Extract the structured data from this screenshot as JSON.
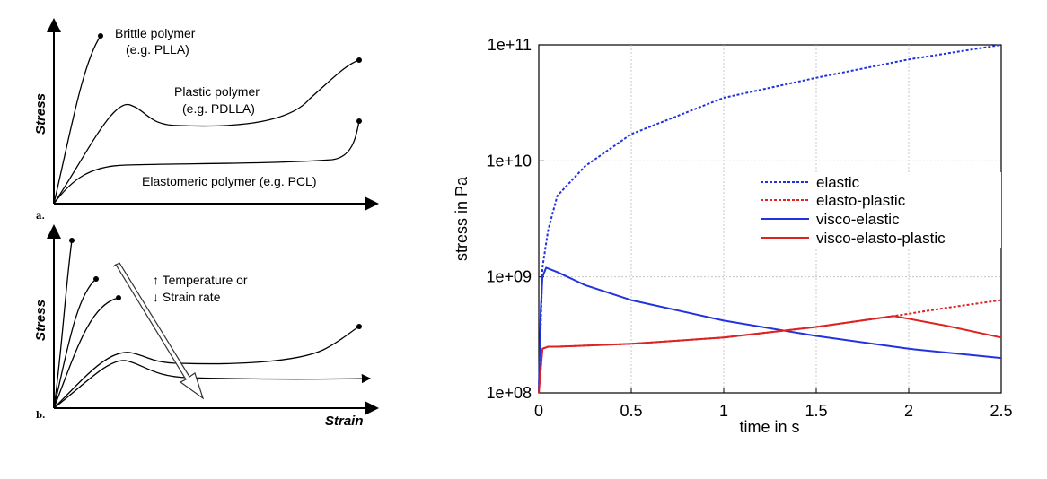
{
  "panel_a": {
    "letter": "a.",
    "ylabel": "Stress",
    "curves": [
      {
        "label_lines": [
          "Brittle polymer",
          "(e.g. PLLA)"
        ]
      },
      {
        "label_lines": [
          "Plastic polymer",
          "(e.g. PDLLA)"
        ]
      },
      {
        "label_lines": [
          "Elastomeric polymer (e.g. PCL)"
        ]
      }
    ]
  },
  "panel_b": {
    "letter": "b.",
    "ylabel": "Stress",
    "xlabel": "Strain",
    "annotation_line1": "↑ Temperature or",
    "annotation_line2": "↓ Strain rate"
  },
  "chart_data": [
    {
      "type": "line",
      "xlabel": "time in s",
      "ylabel": "stress in Pa",
      "xlim": [
        0,
        2.5
      ],
      "ylim": [
        100000000,
        100000000000
      ],
      "yscale": "log",
      "grid": true,
      "legend_position": "right",
      "x_ticks": [
        "0",
        "0.5",
        "1",
        "1.5",
        "2",
        "2.5"
      ],
      "y_ticks": [
        "1e+08",
        "1e+09",
        "1e+10",
        "1e+11"
      ],
      "series": [
        {
          "name": "elastic",
          "color": "#2233dd",
          "style": "dashed",
          "x": [
            0.0,
            0.02,
            0.05,
            0.1,
            0.25,
            0.5,
            1.0,
            1.5,
            2.0,
            2.5
          ],
          "y": [
            100000000,
            1200000000,
            2500000000,
            5000000000,
            9000000000,
            17000000000,
            35000000000,
            52000000000,
            75000000000,
            100000000000
          ]
        },
        {
          "name": "elasto-plastic",
          "color": "#dd2222",
          "style": "dashed",
          "x": [
            0.0,
            0.02,
            0.05,
            0.1,
            0.5,
            1.0,
            1.5,
            1.92,
            2.2,
            2.5
          ],
          "y": [
            100000000,
            240000000,
            250000000,
            250000000,
            265000000,
            300000000,
            370000000,
            460000000,
            540000000,
            630000000
          ]
        },
        {
          "name": "visco-elastic",
          "color": "#2233dd",
          "style": "solid",
          "x": [
            0.0,
            0.01,
            0.02,
            0.04,
            0.1,
            0.25,
            0.5,
            1.0,
            1.5,
            2.0,
            2.5
          ],
          "y": [
            100000000,
            500000000,
            1000000000,
            1200000000,
            1100000000,
            850000000,
            630000000,
            420000000,
            310000000,
            240000000,
            200000000
          ]
        },
        {
          "name": "visco-elasto-plastic",
          "color": "#dd2222",
          "style": "solid",
          "x": [
            0.0,
            0.02,
            0.05,
            0.1,
            0.5,
            1.0,
            1.5,
            1.92,
            2.2,
            2.5
          ],
          "y": [
            100000000,
            240000000,
            250000000,
            250000000,
            265000000,
            300000000,
            370000000,
            460000000,
            380000000,
            300000000
          ]
        }
      ]
    }
  ]
}
